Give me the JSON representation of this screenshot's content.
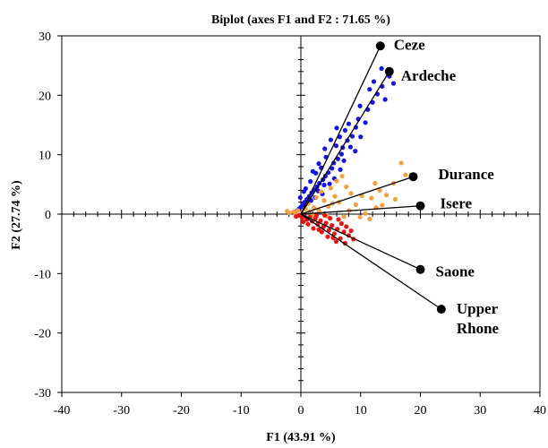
{
  "chart_data": {
    "type": "scatter",
    "title": "Biplot (axes F1 and F2 : 71.65 %)",
    "xlabel": "F1 (43.91 %)",
    "ylabel": "F2 (27.74 %)",
    "xlim": [
      -40,
      40
    ],
    "ylim": [
      -30,
      30
    ],
    "xticks": [
      -40,
      -30,
      -20,
      -10,
      0,
      10,
      20,
      30,
      40
    ],
    "yticks": [
      -30,
      -20,
      -10,
      0,
      10,
      20,
      30
    ],
    "grid": false,
    "legend": "none",
    "series": [
      {
        "color": "#1414e6",
        "points": [
          [
            13.5,
            24.5
          ],
          [
            14.8,
            23.2
          ],
          [
            15.5,
            22.0
          ],
          [
            13.6,
            21.5
          ],
          [
            12.8,
            20.2
          ],
          [
            12.0,
            18.8
          ],
          [
            11.2,
            17.6
          ],
          [
            10.8,
            15.4
          ],
          [
            9.6,
            16.0
          ],
          [
            9.2,
            14.6
          ],
          [
            8.6,
            13.1
          ],
          [
            7.8,
            12.4
          ],
          [
            7.0,
            11.2
          ],
          [
            6.8,
            10.1
          ],
          [
            6.2,
            9.3
          ],
          [
            5.5,
            8.6
          ],
          [
            5.2,
            7.7
          ],
          [
            4.6,
            7.0
          ],
          [
            4.1,
            6.4
          ],
          [
            3.7,
            5.8
          ],
          [
            3.1,
            5.2
          ],
          [
            2.7,
            4.6
          ],
          [
            2.2,
            4.1
          ],
          [
            1.8,
            3.6
          ],
          [
            1.4,
            3.0
          ],
          [
            1.0,
            2.5
          ],
          [
            0.6,
            2.0
          ],
          [
            0.3,
            1.6
          ],
          [
            0.0,
            1.2
          ],
          [
            -0.3,
            0.9
          ],
          [
            -0.6,
            0.6
          ],
          [
            -0.9,
            0.4
          ],
          [
            -1.2,
            0.3
          ],
          [
            2.5,
            6.9
          ],
          [
            3.4,
            7.8
          ],
          [
            4.2,
            9.6
          ],
          [
            5.9,
            11.5
          ],
          [
            6.5,
            13.0
          ],
          [
            8.0,
            15.2
          ],
          [
            9.9,
            18.2
          ],
          [
            11.5,
            21.0
          ],
          [
            7.4,
            14.1
          ],
          [
            3.0,
            8.5
          ],
          [
            1.6,
            5.5
          ],
          [
            4.8,
            5.1
          ],
          [
            5.6,
            6.0
          ],
          [
            6.6,
            7.5
          ],
          [
            3.6,
            3.4
          ],
          [
            2.4,
            2.8
          ],
          [
            1.2,
            1.8
          ],
          [
            0.8,
            4.3
          ],
          [
            2.0,
            7.2
          ],
          [
            4.0,
            11.0
          ],
          [
            5.0,
            12.5
          ],
          [
            6.0,
            14.5
          ],
          [
            8.3,
            11.3
          ],
          [
            10.0,
            13.0
          ],
          [
            12.2,
            22.3
          ],
          [
            14.1,
            19.3
          ],
          [
            7.2,
            9.0
          ],
          [
            1.7,
            2.3
          ],
          [
            2.9,
            3.9
          ],
          [
            3.9,
            4.9
          ],
          [
            -0.1,
            2.8
          ],
          [
            0.5,
            3.8
          ],
          [
            9.1,
            10.6
          ]
        ]
      },
      {
        "color": "#f5a040",
        "points": [
          [
            17.5,
            6.6
          ],
          [
            16.8,
            8.6
          ],
          [
            15.5,
            5.2
          ],
          [
            13.2,
            4.0
          ],
          [
            11.8,
            2.7
          ],
          [
            12.6,
            1.1
          ],
          [
            10.8,
            0.1
          ],
          [
            9.2,
            1.6
          ],
          [
            8.4,
            3.5
          ],
          [
            7.6,
            4.6
          ],
          [
            6.4,
            2.0
          ],
          [
            5.7,
            3.0
          ],
          [
            4.6,
            1.3
          ],
          [
            3.9,
            2.3
          ],
          [
            3.0,
            0.6
          ],
          [
            2.2,
            1.1
          ],
          [
            1.5,
            0.4
          ],
          [
            0.8,
            0.9
          ],
          [
            0.2,
            0.2
          ],
          [
            -0.5,
            0.6
          ],
          [
            -1.2,
            0.4
          ],
          [
            -1.9,
            0.2
          ],
          [
            -2.3,
            0.5
          ],
          [
            7.2,
            -0.4
          ],
          [
            9.9,
            -0.5
          ],
          [
            11.5,
            -0.8
          ],
          [
            13.6,
            1.5
          ],
          [
            15.8,
            2.5
          ],
          [
            14.3,
            3.2
          ],
          [
            6.0,
            5.6
          ],
          [
            5.0,
            4.4
          ],
          [
            2.6,
            2.8
          ],
          [
            1.2,
            1.7
          ],
          [
            8.1,
            0.6
          ],
          [
            4.4,
            -0.3
          ],
          [
            3.4,
            3.8
          ],
          [
            10.2,
            3.1
          ],
          [
            12.4,
            5.2
          ],
          [
            6.9,
            6.4
          ],
          [
            2.0,
            -0.2
          ],
          [
            -0.8,
            -0.1
          ],
          [
            5.3,
            1.8
          ]
        ]
      },
      {
        "color": "#e81414",
        "points": [
          [
            8.8,
            -4.2
          ],
          [
            8.0,
            -3.6
          ],
          [
            7.2,
            -3.0
          ],
          [
            6.6,
            -4.1
          ],
          [
            6.1,
            -2.5
          ],
          [
            5.6,
            -3.3
          ],
          [
            5.2,
            -1.9
          ],
          [
            4.7,
            -2.7
          ],
          [
            4.2,
            -1.5
          ],
          [
            3.8,
            -2.1
          ],
          [
            3.3,
            -1.1
          ],
          [
            2.8,
            -1.7
          ],
          [
            2.4,
            -0.8
          ],
          [
            1.9,
            -1.2
          ],
          [
            1.5,
            -0.5
          ],
          [
            1.0,
            -0.9
          ],
          [
            0.6,
            -0.3
          ],
          [
            0.2,
            -0.6
          ],
          [
            -0.3,
            -0.2
          ],
          [
            -0.8,
            -0.4
          ],
          [
            6.8,
            -1.6
          ],
          [
            7.6,
            -2.1
          ],
          [
            4.9,
            -0.7
          ],
          [
            3.5,
            -3.0
          ],
          [
            2.1,
            -2.4
          ],
          [
            5.9,
            -4.6
          ],
          [
            7.4,
            -4.9
          ],
          [
            1.2,
            -1.7
          ],
          [
            0.4,
            -1.3
          ],
          [
            4.0,
            -0.2
          ],
          [
            6.3,
            -0.9
          ],
          [
            8.4,
            -2.8
          ],
          [
            3.0,
            -2.6
          ],
          [
            5.4,
            -4.0
          ],
          [
            2.6,
            -0.3
          ],
          [
            4.5,
            -3.8
          ]
        ]
      }
    ],
    "variables": [
      {
        "name": "Ceze",
        "x": 13.3,
        "y": 28.3,
        "label_lines": [
          "Ceze"
        ]
      },
      {
        "name": "Ardeche",
        "x": 14.8,
        "y": 24.0,
        "label_lines": [
          "Ardeche"
        ]
      },
      {
        "name": "Durance",
        "x": 18.8,
        "y": 6.3,
        "label_lines": [
          "Durance"
        ]
      },
      {
        "name": "Isere",
        "x": 20.0,
        "y": 1.4,
        "label_lines": [
          "Isere"
        ]
      },
      {
        "name": "Saone",
        "x": 20.0,
        "y": -9.3,
        "label_lines": [
          "Saone"
        ]
      },
      {
        "name": "Upper Rhone",
        "x": 23.5,
        "y": -16.0,
        "label_lines": [
          "Upper",
          "Rhone"
        ]
      }
    ]
  }
}
